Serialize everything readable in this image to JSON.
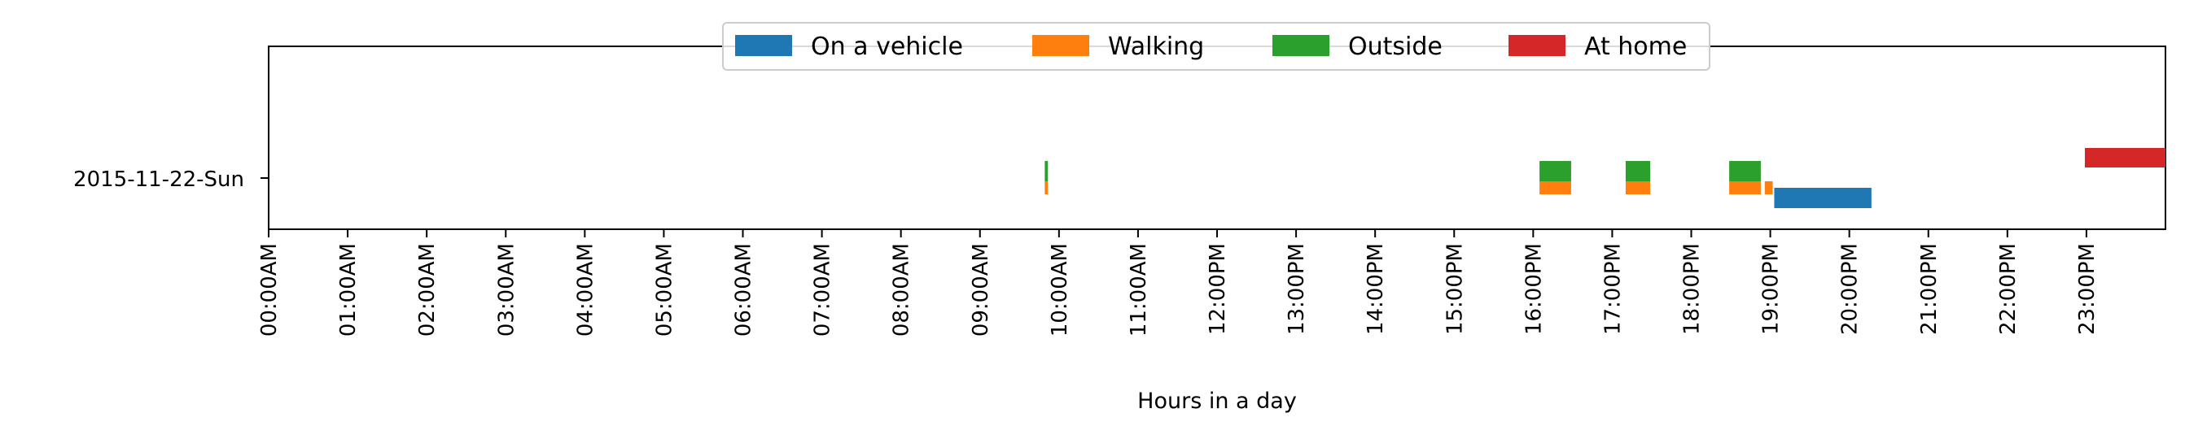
{
  "chart_data": {
    "type": "bar",
    "orientation": "horizontal-timeline",
    "xlabel": "Hours in a day",
    "ylabel": "",
    "xlim": [
      0,
      24
    ],
    "x_ticks": [
      "00:00AM",
      "01:00AM",
      "02:00AM",
      "03:00AM",
      "04:00AM",
      "05:00AM",
      "06:00AM",
      "07:00AM",
      "08:00AM",
      "09:00AM",
      "10:00AM",
      "11:00AM",
      "12:00PM",
      "13:00PM",
      "14:00PM",
      "15:00PM",
      "16:00PM",
      "17:00PM",
      "18:00PM",
      "19:00PM",
      "20:00PM",
      "21:00PM",
      "22:00PM",
      "23:00PM"
    ],
    "categories": [
      "2015-11-22-Sun"
    ],
    "legend": {
      "placement": "top-center",
      "entries": [
        "On a vehicle",
        "Walking",
        "Outside",
        "At home"
      ]
    },
    "series": [
      {
        "name": "On a vehicle",
        "color": "#1f77b4",
        "lane": "below",
        "intervals": [
          [
            19.05,
            20.28
          ]
        ]
      },
      {
        "name": "Walking",
        "color": "#ff7f0e",
        "lane": "center",
        "intervals": [
          [
            9.82,
            9.86
          ],
          [
            16.08,
            16.48
          ],
          [
            17.17,
            17.48
          ],
          [
            18.48,
            18.88
          ],
          [
            18.93,
            19.03
          ]
        ]
      },
      {
        "name": "Outside",
        "color": "#2ca02c",
        "lane": "above-center",
        "intervals": [
          [
            9.82,
            9.86
          ],
          [
            16.08,
            16.48
          ],
          [
            17.17,
            17.48
          ],
          [
            18.48,
            18.88
          ]
        ]
      },
      {
        "name": "At home",
        "color": "#d62728",
        "lane": "top",
        "intervals": [
          [
            22.98,
            24.0
          ]
        ]
      }
    ]
  }
}
